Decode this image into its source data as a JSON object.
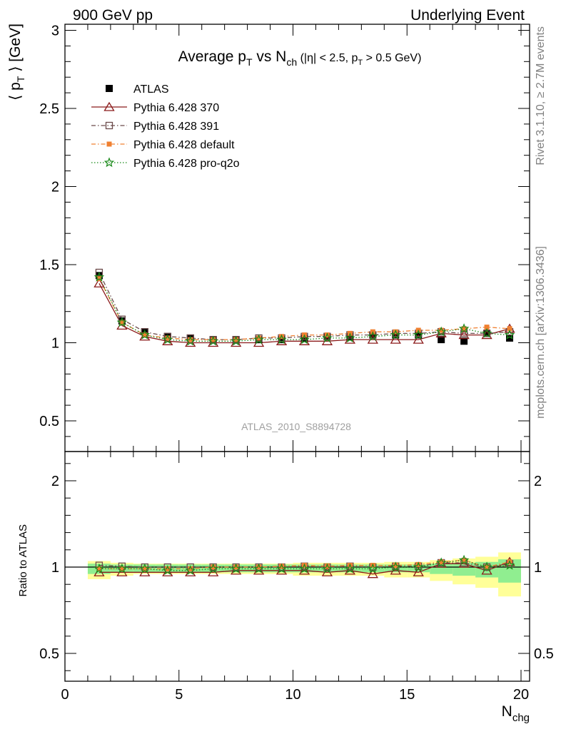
{
  "header": {
    "left": "900 GeV pp",
    "right": "Underlying Event"
  },
  "side_labels": {
    "rivet": "Rivet 3.1.10, ≥ 2.7M events",
    "mcplots": "mcplots.cern.ch [arXiv:1306.3436]"
  },
  "colors": {
    "atlas": "#000000",
    "p370": "#8b1a1a",
    "p391": "#6b4a4a",
    "pdefault": "#f08030",
    "pproq2o": "#1a8a1a",
    "band_inner": "#90ee90",
    "band_outer": "#ffff99"
  },
  "chart_data": [
    {
      "type": "scatter",
      "title_parts": {
        "main": "Average p",
        "sub1": "T",
        "vs": " vs N",
        "sub2": "ch",
        "cuts_a": " (|η| < 2.5, p",
        "sub3": "T",
        "cuts_b": " > 0.5 GeV)"
      },
      "ylabel_parts": {
        "a": "⟨ p",
        "sub": "T",
        "b": " ⟩ [GeV]"
      },
      "analysis_label": "ATLAS_2010_S8894728",
      "xlim": [
        0,
        20
      ],
      "ylim": [
        0.3,
        3.05
      ],
      "y_ticks": [
        0.5,
        1,
        1.5,
        2,
        2.5,
        3
      ],
      "y_tick_labels": [
        "0.5",
        "1",
        "1.5",
        "2",
        "2.5",
        "3"
      ],
      "x": [
        1.5,
        2.5,
        3.5,
        4.5,
        5.5,
        6.5,
        7.5,
        8.5,
        9.5,
        10.5,
        11.5,
        12.5,
        13.5,
        14.5,
        15.5,
        16.5,
        17.5,
        18.5,
        19.5
      ],
      "series": [
        {
          "name": "ATLAS",
          "key": "atlas",
          "marker": "filled-square",
          "line": "none",
          "values": [
            1.43,
            1.14,
            1.07,
            1.04,
            1.03,
            1.02,
            1.02,
            1.02,
            1.02,
            1.03,
            1.04,
            1.04,
            1.05,
            1.05,
            1.05,
            1.02,
            1.01,
            1.06,
            1.03
          ]
        },
        {
          "name": "Pythia 6.428 370",
          "key": "p370",
          "marker": "open-triangle",
          "line": "solid",
          "values": [
            1.38,
            1.11,
            1.04,
            1.01,
            1.0,
            1.0,
            1.0,
            1.0,
            1.01,
            1.01,
            1.01,
            1.02,
            1.02,
            1.02,
            1.02,
            1.06,
            1.05,
            1.05,
            1.09
          ]
        },
        {
          "name": "Pythia 6.428 391",
          "key": "p391",
          "marker": "open-square",
          "line": "dashdot",
          "values": [
            1.45,
            1.15,
            1.07,
            1.04,
            1.03,
            1.02,
            1.02,
            1.03,
            1.03,
            1.04,
            1.04,
            1.05,
            1.05,
            1.06,
            1.06,
            1.07,
            1.06,
            1.06,
            1.07
          ]
        },
        {
          "name": "Pythia 6.428 default",
          "key": "pdefault",
          "marker": "filled-square-small",
          "line": "dashdot",
          "values": [
            1.41,
            1.13,
            1.05,
            1.03,
            1.02,
            1.02,
            1.02,
            1.03,
            1.04,
            1.05,
            1.05,
            1.06,
            1.07,
            1.07,
            1.08,
            1.08,
            1.09,
            1.1,
            1.09
          ]
        },
        {
          "name": "Pythia 6.428 pro-q2o",
          "key": "pproq2o",
          "marker": "star",
          "line": "dotted",
          "values": [
            1.42,
            1.13,
            1.05,
            1.02,
            1.01,
            1.01,
            1.01,
            1.02,
            1.02,
            1.02,
            1.03,
            1.03,
            1.04,
            1.05,
            1.05,
            1.07,
            1.09,
            1.06,
            1.05
          ]
        }
      ]
    },
    {
      "type": "scatter",
      "ylabel": "Ratio to ATLAS",
      "xlabel_parts": {
        "a": "N",
        "sub": "chg"
      },
      "xlim": [
        0,
        20
      ],
      "ylim": [
        0.3,
        2.3
      ],
      "x_ticks": [
        0,
        5,
        10,
        15,
        20
      ],
      "x_tick_labels": [
        "0",
        "5",
        "10",
        "15",
        "20"
      ],
      "y_ticks": [
        0.5,
        1,
        2
      ],
      "y_tick_labels": [
        "0.5",
        "1",
        "2"
      ],
      "x": [
        1.5,
        2.5,
        3.5,
        4.5,
        5.5,
        6.5,
        7.5,
        8.5,
        9.5,
        10.5,
        11.5,
        12.5,
        13.5,
        14.5,
        15.5,
        16.5,
        17.5,
        18.5,
        19.5
      ],
      "band_inner_halfwidth": [
        0.04,
        0.03,
        0.03,
        0.03,
        0.03,
        0.03,
        0.03,
        0.03,
        0.03,
        0.03,
        0.03,
        0.03,
        0.03,
        0.03,
        0.03,
        0.04,
        0.05,
        0.06,
        0.09
      ],
      "band_outer_halfwidth": [
        0.07,
        0.05,
        0.04,
        0.04,
        0.04,
        0.04,
        0.04,
        0.04,
        0.04,
        0.05,
        0.05,
        0.05,
        0.05,
        0.06,
        0.06,
        0.08,
        0.1,
        0.12,
        0.17
      ],
      "series": [
        {
          "key": "p370",
          "marker": "open-triangle",
          "line": "solid",
          "values": [
            0.97,
            0.97,
            0.97,
            0.97,
            0.97,
            0.97,
            0.98,
            0.98,
            0.98,
            0.98,
            0.97,
            0.98,
            0.96,
            0.98,
            0.97,
            1.04,
            1.04,
            0.98,
            1.06
          ]
        },
        {
          "key": "p391",
          "marker": "open-square",
          "line": "dashdot",
          "values": [
            1.02,
            1.01,
            1.0,
            1.0,
            1.0,
            1.0,
            1.0,
            1.0,
            1.0,
            1.01,
            1.0,
            1.01,
            1.0,
            1.01,
            1.01,
            1.05,
            1.05,
            1.0,
            1.04
          ]
        },
        {
          "key": "pdefault",
          "marker": "filled-square-small",
          "line": "dashdot",
          "values": [
            0.99,
            0.99,
            0.99,
            0.99,
            0.99,
            1.0,
            1.0,
            1.0,
            1.01,
            1.02,
            1.01,
            1.02,
            1.02,
            1.02,
            1.03,
            1.06,
            1.08,
            1.0,
            1.06
          ]
        },
        {
          "key": "pproq2o",
          "marker": "star",
          "line": "dotted",
          "values": [
            0.99,
            0.99,
            0.99,
            0.98,
            0.98,
            0.99,
            0.99,
            0.99,
            0.99,
            0.99,
            0.99,
            0.99,
            0.99,
            1.0,
            1.0,
            1.05,
            1.08,
            1.0,
            1.02
          ]
        }
      ]
    }
  ]
}
